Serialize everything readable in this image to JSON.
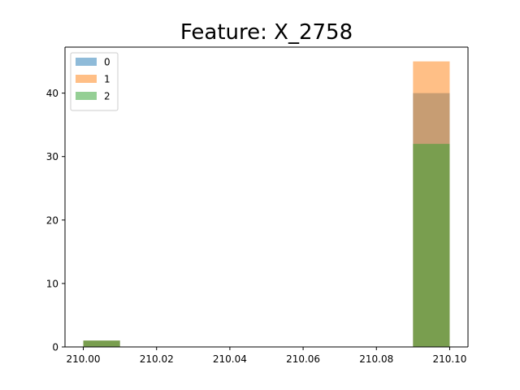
{
  "chart_data": {
    "type": "bar",
    "title": "Feature: X_2758",
    "xlabel": "",
    "ylabel": "",
    "xlim": [
      209.995,
      210.105
    ],
    "ylim": [
      0,
      47.25
    ],
    "x_ticks": [
      "210.00",
      "210.02",
      "210.04",
      "210.06",
      "210.08",
      "210.10"
    ],
    "y_ticks": [
      "0",
      "10",
      "20",
      "30",
      "40"
    ],
    "legend_position": "upper-left",
    "grid": false,
    "series": [
      {
        "name": "0",
        "color": "#1f77b4",
        "bars": [
          {
            "x0": 210.0,
            "x1": 210.01,
            "value": 1
          },
          {
            "x0": 210.09,
            "x1": 210.1,
            "value": 40
          }
        ]
      },
      {
        "name": "1",
        "color": "#ff7f0e",
        "bars": [
          {
            "x0": 210.0,
            "x1": 210.01,
            "value": 1
          },
          {
            "x0": 210.09,
            "x1": 210.1,
            "value": 45
          }
        ]
      },
      {
        "name": "2",
        "color": "#2ca02c",
        "bars": [
          {
            "x0": 210.0,
            "x1": 210.01,
            "value": 1
          },
          {
            "x0": 210.09,
            "x1": 210.1,
            "value": 32
          }
        ]
      }
    ]
  }
}
